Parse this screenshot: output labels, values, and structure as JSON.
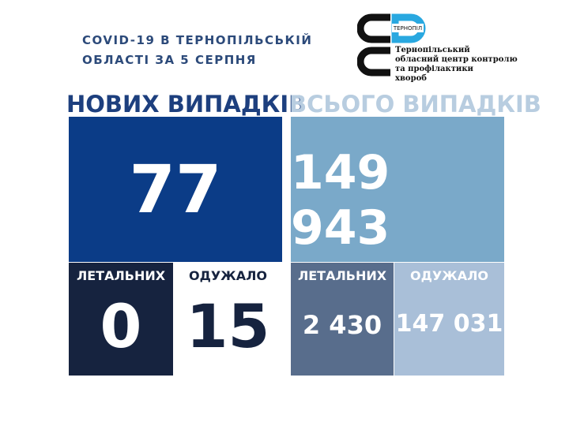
{
  "header": {
    "title_lines": [
      "COVID-19 В ТЕРНОПІЛЬСЬКІЙ",
      "ОБЛАСТІ ЗА 5 СЕРПНЯ"
    ],
    "logo": {
      "badge": "ТЕРНОПІЛ",
      "lines": [
        "Тернопільський",
        "обласний центр контролю",
        "та профілактики",
        "хвороб"
      ]
    }
  },
  "new_cases": {
    "heading": "НОВИХ ВИПАДКІВ",
    "total": "77",
    "deaths": {
      "label": "ЛЕТАЛЬНИХ",
      "value": "0"
    },
    "recovered": {
      "label": "ОДУЖАЛО",
      "value": "15"
    }
  },
  "all_cases": {
    "heading": "ВСЬОГО ВИПАДКІВ",
    "total": "149 943",
    "deaths": {
      "label": "ЛЕТАЛЬНИХ",
      "value": "2 430"
    },
    "recovered": {
      "label": "ОДУЖАЛО",
      "value": "147 031"
    }
  }
}
